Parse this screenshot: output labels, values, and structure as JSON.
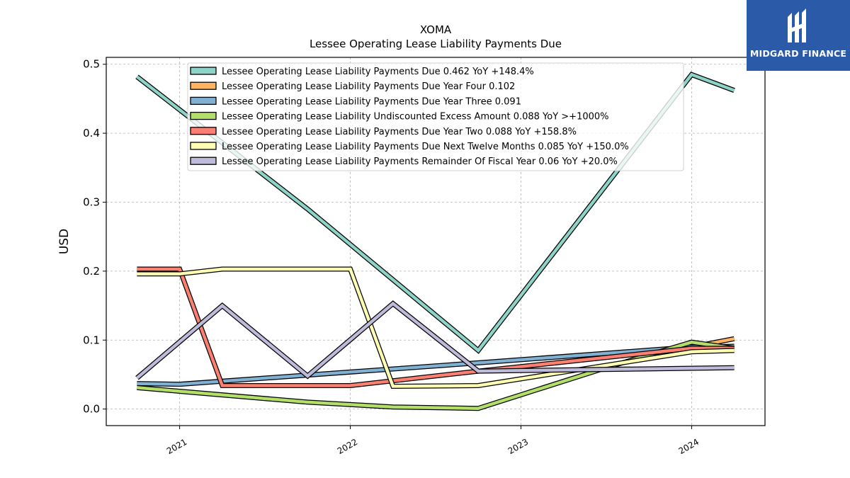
{
  "brand": {
    "name": "MIDGARD FINANCE",
    "background": "#2a5aa8"
  },
  "chart_data": {
    "type": "line",
    "title": "XOMA",
    "subtitle": "Lessee Operating Lease Liability Payments Due",
    "xlabel": "",
    "ylabel": "USD",
    "xlim": [
      2020.57,
      2024.43
    ],
    "ylim": [
      -0.024,
      0.51
    ],
    "x_ticks": [
      2021,
      2022,
      2023,
      2024
    ],
    "x_tick_labels": [
      "2021",
      "2022",
      "2023",
      "2024"
    ],
    "y_ticks": [
      0.0,
      0.1,
      0.2,
      0.3,
      0.4,
      0.5
    ],
    "y_tick_labels": [
      "0.0",
      "0.1",
      "0.2",
      "0.3",
      "0.4",
      "0.5"
    ],
    "grid": true,
    "legend_position": "top",
    "series": [
      {
        "name": "Lessee Operating Lease Liability Payments Due",
        "legend_label": "Lessee Operating Lease Liability Payments Due  0.462 YoY +148.4%",
        "color": "#8dd3c7",
        "x": [
          2020.75,
          2021.75,
          2022.75,
          2024.0,
          2024.25
        ],
        "y": [
          0.482,
          0.29,
          0.085,
          0.485,
          0.462
        ]
      },
      {
        "name": "Lessee Operating Lease Liability Payments Due Year Four",
        "legend_label": "Lessee Operating Lease Liability Payments Due Year Four  0.102",
        "color": "#fdb462",
        "x": [
          2024.0,
          2024.25
        ],
        "y": [
          0.09,
          0.102
        ]
      },
      {
        "name": "Lessee Operating Lease Liability Payments Due Year Three",
        "legend_label": "Lessee Operating Lease Liability Payments Due Year Three  0.091",
        "color": "#80b1d3",
        "x": [
          2020.75,
          2021.0,
          2022.75,
          2024.0,
          2024.25
        ],
        "y": [
          0.037,
          0.036,
          0.067,
          0.09,
          0.091
        ]
      },
      {
        "name": "Lessee Operating Lease Liability Undiscounted Excess Amount",
        "legend_label": "Lessee Operating Lease Liability Undiscounted Excess Amount  0.088 YoY >+1000%",
        "color": "#b3de69",
        "x": [
          2020.75,
          2021.75,
          2022.25,
          2022.75,
          2023.5,
          2024.0,
          2024.25
        ],
        "y": [
          0.031,
          0.01,
          0.003,
          0.001,
          0.06,
          0.097,
          0.088
        ]
      },
      {
        "name": "Lessee Operating Lease Liability Payments Due Year Two",
        "legend_label": "Lessee Operating Lease Liability Payments Due Year Two  0.088 YoY +158.8%",
        "color": "#fb8072",
        "x": [
          2020.75,
          2021.0,
          2021.25,
          2022.0,
          2022.75,
          2024.0,
          2024.25
        ],
        "y": [
          0.203,
          0.203,
          0.034,
          0.034,
          0.055,
          0.088,
          0.088
        ]
      },
      {
        "name": "Lessee Operating Lease Liability Payments Due Next Twelve Months",
        "legend_label": "Lessee Operating Lease Liability Payments Due Next Twelve Months  0.085 YoY +150.0%",
        "color": "#ffffb3",
        "x": [
          2020.75,
          2021.0,
          2021.25,
          2022.0,
          2022.25,
          2022.75,
          2024.0,
          2024.25
        ],
        "y": [
          0.196,
          0.196,
          0.203,
          0.203,
          0.033,
          0.034,
          0.083,
          0.085
        ]
      },
      {
        "name": "Lessee Operating Lease Liability Payments Remainder Of Fiscal Year",
        "legend_label": "Lessee Operating Lease Liability Payments Remainder Of Fiscal Year  0.06 YoY +20.0%",
        "color": "#bebada",
        "x": [
          2020.75,
          2021.25,
          2021.75,
          2022.25,
          2022.75,
          2024.25
        ],
        "y": [
          0.045,
          0.15,
          0.048,
          0.153,
          0.055,
          0.06
        ]
      }
    ]
  }
}
